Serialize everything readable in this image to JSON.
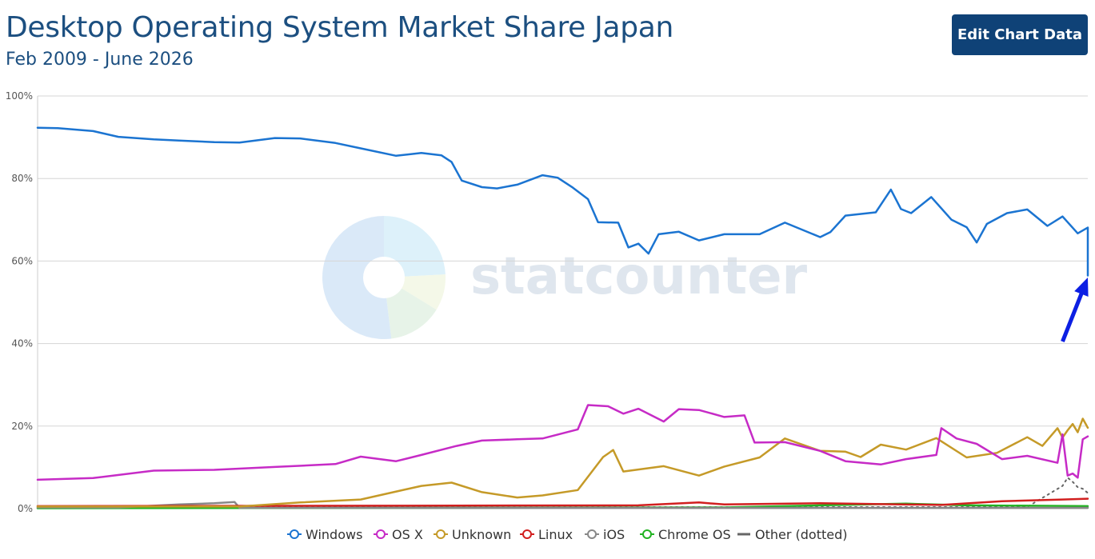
{
  "header": {
    "title": "Desktop Operating System Market Share Japan",
    "subtitle": "Feb 2009 - June 2026",
    "edit_button_label": "Edit Chart Data"
  },
  "watermark": {
    "text": "statcounter"
  },
  "chart_data": {
    "type": "line",
    "x_range": [
      "2009-02",
      "2026-06"
    ],
    "ylim": [
      0,
      100
    ],
    "y_ticks": [
      {
        "value": 0,
        "label": "0%"
      },
      {
        "value": 20,
        "label": "20%"
      },
      {
        "value": 40,
        "label": "40%"
      },
      {
        "value": 60,
        "label": "60%"
      },
      {
        "value": 80,
        "label": "80%"
      },
      {
        "value": 100,
        "label": "100%"
      }
    ],
    "grid": true,
    "legend_position": "bottom",
    "series": [
      {
        "name": "Windows",
        "color": "#1b74d1",
        "points": [
          [
            "2009-02",
            92.3
          ],
          [
            "2009-06",
            92.2
          ],
          [
            "2010-01",
            91.5
          ],
          [
            "2010-06",
            90.1
          ],
          [
            "2011-01",
            89.5
          ],
          [
            "2011-06",
            89.2
          ],
          [
            "2012-01",
            88.8
          ],
          [
            "2012-06",
            88.7
          ],
          [
            "2013-01",
            89.8
          ],
          [
            "2013-06",
            89.7
          ],
          [
            "2014-01",
            88.6
          ],
          [
            "2014-06",
            87.3
          ],
          [
            "2015-01",
            85.5
          ],
          [
            "2015-06",
            86.2
          ],
          [
            "2015-10",
            85.6
          ],
          [
            "2015-12",
            84.0
          ],
          [
            "2016-02",
            79.5
          ],
          [
            "2016-06",
            77.9
          ],
          [
            "2016-09",
            77.6
          ],
          [
            "2017-01",
            78.5
          ],
          [
            "2017-06",
            80.8
          ],
          [
            "2017-09",
            80.2
          ],
          [
            "2017-12",
            77.8
          ],
          [
            "2018-03",
            75.0
          ],
          [
            "2018-05",
            69.4
          ],
          [
            "2018-09",
            69.3
          ],
          [
            "2018-11",
            63.3
          ],
          [
            "2019-01",
            64.2
          ],
          [
            "2019-03",
            61.8
          ],
          [
            "2019-05",
            66.5
          ],
          [
            "2019-09",
            67.1
          ],
          [
            "2020-01",
            65.0
          ],
          [
            "2020-06",
            66.5
          ],
          [
            "2021-01",
            66.5
          ],
          [
            "2021-06",
            69.3
          ],
          [
            "2022-01",
            65.8
          ],
          [
            "2022-03",
            67.0
          ],
          [
            "2022-06",
            71.0
          ],
          [
            "2022-12",
            71.8
          ],
          [
            "2023-03",
            77.3
          ],
          [
            "2023-05",
            72.6
          ],
          [
            "2023-07",
            71.6
          ],
          [
            "2023-11",
            75.5
          ],
          [
            "2024-03",
            70.0
          ],
          [
            "2024-06",
            68.2
          ],
          [
            "2024-08",
            64.5
          ],
          [
            "2024-10",
            69.0
          ],
          [
            "2025-02",
            71.6
          ],
          [
            "2025-06",
            72.5
          ],
          [
            "2025-10",
            68.5
          ],
          [
            "2026-01",
            70.8
          ],
          [
            "2026-04",
            66.7
          ],
          [
            "2026-06",
            68.1
          ],
          [
            "2026-06",
            61.5
          ],
          [
            "2026-06",
            56.5
          ]
        ]
      },
      {
        "name": "OS X",
        "color": "#c62bc6",
        "points": [
          [
            "2009-02",
            7.0
          ],
          [
            "2010-01",
            7.4
          ],
          [
            "2011-01",
            9.2
          ],
          [
            "2012-01",
            9.4
          ],
          [
            "2013-01",
            10.1
          ],
          [
            "2014-01",
            10.8
          ],
          [
            "2014-06",
            12.6
          ],
          [
            "2015-01",
            11.5
          ],
          [
            "2015-06",
            13.0
          ],
          [
            "2016-01",
            15.2
          ],
          [
            "2016-06",
            16.5
          ],
          [
            "2017-01",
            16.8
          ],
          [
            "2017-06",
            17.0
          ],
          [
            "2018-01",
            19.2
          ],
          [
            "2018-03",
            25.1
          ],
          [
            "2018-07",
            24.8
          ],
          [
            "2018-10",
            23.0
          ],
          [
            "2019-01",
            24.2
          ],
          [
            "2019-06",
            21.1
          ],
          [
            "2019-09",
            24.1
          ],
          [
            "2020-01",
            23.9
          ],
          [
            "2020-06",
            22.2
          ],
          [
            "2020-10",
            22.6
          ],
          [
            "2020-12",
            16.0
          ],
          [
            "2021-06",
            16.1
          ],
          [
            "2022-01",
            14.0
          ],
          [
            "2022-06",
            11.5
          ],
          [
            "2023-01",
            10.7
          ],
          [
            "2023-06",
            12.0
          ],
          [
            "2023-12",
            13.0
          ],
          [
            "2024-01",
            19.5
          ],
          [
            "2024-04",
            17.0
          ],
          [
            "2024-08",
            15.7
          ],
          [
            "2025-01",
            12.0
          ],
          [
            "2025-06",
            12.8
          ],
          [
            "2025-12",
            11.1
          ],
          [
            "2026-01",
            18.0
          ],
          [
            "2026-02",
            8.0
          ],
          [
            "2026-03",
            8.5
          ],
          [
            "2026-04",
            7.5
          ],
          [
            "2026-05",
            16.8
          ],
          [
            "2026-06",
            17.5
          ]
        ]
      },
      {
        "name": "Unknown",
        "color": "#c59a28",
        "points": [
          [
            "2009-02",
            0.5
          ],
          [
            "2012-06",
            0.5
          ],
          [
            "2013-06",
            1.5
          ],
          [
            "2014-06",
            2.2
          ],
          [
            "2015-06",
            5.5
          ],
          [
            "2015-12",
            6.3
          ],
          [
            "2016-06",
            4.0
          ],
          [
            "2017-01",
            2.7
          ],
          [
            "2017-06",
            3.2
          ],
          [
            "2018-01",
            4.5
          ],
          [
            "2018-06",
            12.5
          ],
          [
            "2018-08",
            14.2
          ],
          [
            "2018-10",
            9.0
          ],
          [
            "2019-06",
            10.3
          ],
          [
            "2020-01",
            8.0
          ],
          [
            "2020-06",
            10.2
          ],
          [
            "2021-01",
            12.4
          ],
          [
            "2021-06",
            17.0
          ],
          [
            "2022-01",
            14.0
          ],
          [
            "2022-06",
            13.8
          ],
          [
            "2022-09",
            12.5
          ],
          [
            "2023-01",
            15.5
          ],
          [
            "2023-06",
            14.3
          ],
          [
            "2023-12",
            17.1
          ],
          [
            "2024-06",
            12.4
          ],
          [
            "2024-12",
            13.5
          ],
          [
            "2025-06",
            17.3
          ],
          [
            "2025-09",
            15.2
          ],
          [
            "2025-12",
            19.5
          ],
          [
            "2026-01",
            17.2
          ],
          [
            "2026-02",
            19.0
          ],
          [
            "2026-03",
            20.5
          ],
          [
            "2026-04",
            18.5
          ],
          [
            "2026-05",
            21.8
          ],
          [
            "2026-06",
            19.6
          ]
        ]
      },
      {
        "name": "Linux",
        "color": "#d11f1f",
        "points": [
          [
            "2009-02",
            0.6
          ],
          [
            "2015-01",
            0.7
          ],
          [
            "2019-01",
            0.8
          ],
          [
            "2020-01",
            1.5
          ],
          [
            "2020-06",
            1.0
          ],
          [
            "2022-01",
            1.3
          ],
          [
            "2024-01",
            0.9
          ],
          [
            "2025-01",
            1.8
          ],
          [
            "2026-01",
            2.2
          ],
          [
            "2026-06",
            2.4
          ]
        ]
      },
      {
        "name": "iOS",
        "color": "#888888",
        "points": [
          [
            "2009-02",
            0.3
          ],
          [
            "2010-06",
            0.3
          ],
          [
            "2011-01",
            0.7
          ],
          [
            "2011-06",
            1.0
          ],
          [
            "2012-01",
            1.3
          ],
          [
            "2012-05",
            1.6
          ],
          [
            "2012-06",
            0.2
          ],
          [
            "2026-06",
            0.2
          ]
        ]
      },
      {
        "name": "Chrome OS",
        "color": "#22b322",
        "points": [
          [
            "2009-02",
            0.1
          ],
          [
            "2020-06",
            0.3
          ],
          [
            "2022-01",
            0.8
          ],
          [
            "2023-06",
            1.2
          ],
          [
            "2024-06",
            0.8
          ],
          [
            "2026-06",
            0.6
          ]
        ]
      },
      {
        "name": "Other (dotted)",
        "color": "#666666",
        "dotted": true,
        "points": [
          [
            "2009-02",
            0.3
          ],
          [
            "2025-06",
            0.4
          ],
          [
            "2026-01",
            5.5
          ],
          [
            "2026-02",
            7.5
          ],
          [
            "2026-03",
            6.5
          ],
          [
            "2026-04",
            5.2
          ],
          [
            "2026-05",
            4.8
          ],
          [
            "2026-06",
            3.8
          ]
        ]
      }
    ],
    "annotations": [
      {
        "type": "arrow",
        "color": "#0c1fe3",
        "from": [
          "2026-01",
          40.5
        ],
        "to": [
          "2026-06",
          56.0
        ]
      }
    ]
  }
}
